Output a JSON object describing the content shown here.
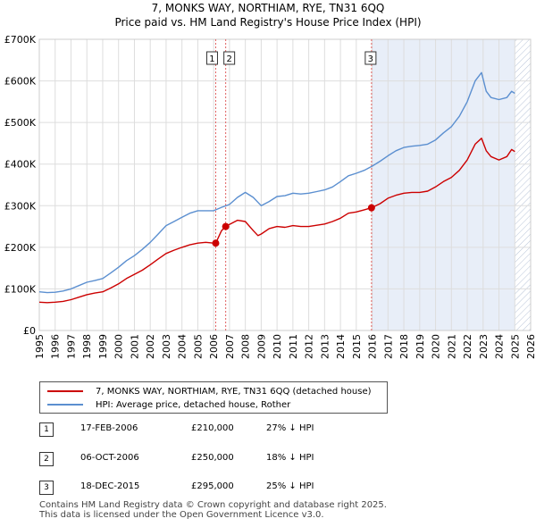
{
  "header": {
    "title": "7, MONKS WAY, NORTHIAM, RYE, TN31 6QQ",
    "subtitle": "Price paid vs. HM Land Registry's House Price Index (HPI)"
  },
  "colors": {
    "property": "#cc0000",
    "hpi": "#5b8fd0",
    "shade": "#e8eef8",
    "grid": "#dddddd",
    "vline": "#e06060"
  },
  "chart_data": {
    "type": "line",
    "title": "7, MONKS WAY, NORTHIAM, RYE, TN31 6QQ",
    "subtitle": "Price paid vs. HM Land Registry's House Price Index (HPI)",
    "xlim": [
      1995,
      2026
    ],
    "ylim": [
      0,
      700000
    ],
    "x_ticks": [
      1995,
      1996,
      1997,
      1998,
      1999,
      2000,
      2001,
      2002,
      2003,
      2004,
      2005,
      2006,
      2007,
      2008,
      2009,
      2010,
      2011,
      2012,
      2013,
      2014,
      2015,
      2016,
      2017,
      2018,
      2019,
      2020,
      2021,
      2022,
      2023,
      2024,
      2025,
      2026
    ],
    "y_ticks": [
      {
        "value": 0,
        "label": "£0"
      },
      {
        "value": 100000,
        "label": "£100K"
      },
      {
        "value": 200000,
        "label": "£200K"
      },
      {
        "value": 300000,
        "label": "£300K"
      },
      {
        "value": 400000,
        "label": "£400K"
      },
      {
        "value": 500000,
        "label": "£500K"
      },
      {
        "value": 600000,
        "label": "£600K"
      },
      {
        "value": 700000,
        "label": "£700K"
      }
    ],
    "shaded_ranges": [
      [
        2015.96,
        2025.0
      ],
      [
        2025.0,
        2026.0
      ]
    ],
    "series": [
      {
        "name": "7, MONKS WAY, NORTHIAM, RYE, TN31 6QQ (detached house)",
        "x": [
          1995.0,
          1995.5,
          1996.0,
          1996.5,
          1997.0,
          1997.5,
          1998.0,
          1998.5,
          1999.0,
          1999.5,
          2000.0,
          2000.5,
          2001.0,
          2001.5,
          2002.0,
          2002.5,
          2003.0,
          2003.5,
          2004.0,
          2004.5,
          2005.0,
          2005.5,
          2006.0,
          2006.13,
          2006.5,
          2006.76,
          2007.0,
          2007.5,
          2008.0,
          2008.5,
          2008.8,
          2009.0,
          2009.5,
          2010.0,
          2010.5,
          2011.0,
          2011.5,
          2012.0,
          2012.5,
          2013.0,
          2013.5,
          2014.0,
          2014.5,
          2015.0,
          2015.5,
          2015.96,
          2016.5,
          2017.0,
          2017.5,
          2018.0,
          2018.5,
          2019.0,
          2019.5,
          2020.0,
          2020.5,
          2021.0,
          2021.5,
          2022.0,
          2022.5,
          2022.9,
          2023.2,
          2023.5,
          2024.0,
          2024.5,
          2024.8,
          2025.0
        ],
        "values": [
          68000,
          67000,
          68000,
          70000,
          74000,
          80000,
          86000,
          90000,
          93000,
          102000,
          112000,
          125000,
          135000,
          145000,
          158000,
          172000,
          185000,
          193000,
          200000,
          206000,
          210000,
          212000,
          210000,
          210000,
          240000,
          250000,
          255000,
          265000,
          262000,
          240000,
          228000,
          232000,
          245000,
          250000,
          248000,
          252000,
          250000,
          250000,
          253000,
          256000,
          262000,
          270000,
          282000,
          285000,
          290000,
          295000,
          305000,
          318000,
          325000,
          330000,
          332000,
          332000,
          335000,
          345000,
          358000,
          368000,
          385000,
          410000,
          448000,
          462000,
          432000,
          418000,
          410000,
          418000,
          435000,
          430000
        ]
      },
      {
        "name": "HPI: Average price, detached house, Rother",
        "x": [
          1995.0,
          1995.5,
          1996.0,
          1996.5,
          1997.0,
          1997.5,
          1998.0,
          1998.5,
          1999.0,
          1999.5,
          2000.0,
          2000.5,
          2001.0,
          2001.5,
          2002.0,
          2002.5,
          2003.0,
          2003.5,
          2004.0,
          2004.5,
          2005.0,
          2005.5,
          2006.0,
          2006.5,
          2007.0,
          2007.5,
          2008.0,
          2008.5,
          2009.0,
          2009.5,
          2010.0,
          2010.5,
          2011.0,
          2011.5,
          2012.0,
          2012.5,
          2013.0,
          2013.5,
          2014.0,
          2014.5,
          2015.0,
          2015.5,
          2016.0,
          2016.5,
          2017.0,
          2017.5,
          2018.0,
          2018.5,
          2019.0,
          2019.5,
          2020.0,
          2020.5,
          2021.0,
          2021.5,
          2022.0,
          2022.5,
          2022.9,
          2023.2,
          2023.5,
          2024.0,
          2024.5,
          2024.8,
          2025.0
        ],
        "values": [
          93000,
          91000,
          92000,
          95000,
          100000,
          108000,
          116000,
          120000,
          125000,
          138000,
          152000,
          168000,
          180000,
          195000,
          212000,
          232000,
          252000,
          262000,
          272000,
          282000,
          288000,
          288000,
          288000,
          296000,
          303000,
          320000,
          332000,
          320000,
          300000,
          310000,
          322000,
          324000,
          330000,
          328000,
          330000,
          334000,
          338000,
          345000,
          358000,
          372000,
          378000,
          385000,
          395000,
          407000,
          420000,
          432000,
          440000,
          443000,
          445000,
          448000,
          458000,
          475000,
          490000,
          515000,
          550000,
          600000,
          620000,
          575000,
          560000,
          555000,
          560000,
          575000,
          570000
        ]
      }
    ],
    "transactions": [
      {
        "label": "1",
        "x": 2006.13,
        "value": 210000
      },
      {
        "label": "2",
        "x": 2006.76,
        "value": 250000
      },
      {
        "label": "3",
        "x": 2015.96,
        "value": 295000
      }
    ]
  },
  "legend": {
    "property_label": "7, MONKS WAY, NORTHIAM, RYE, TN31 6QQ (detached house)",
    "hpi_label": "HPI: Average price, detached house, Rother"
  },
  "transactions_table": [
    {
      "num": "1",
      "date": "17-FEB-2006",
      "price": "£210,000",
      "change": "27% ↓ HPI"
    },
    {
      "num": "2",
      "date": "06-OCT-2006",
      "price": "£250,000",
      "change": "18% ↓ HPI"
    },
    {
      "num": "3",
      "date": "18-DEC-2015",
      "price": "£295,000",
      "change": "25% ↓ HPI"
    }
  ],
  "footer": {
    "line1": "Contains HM Land Registry data © Crown copyright and database right 2025.",
    "line2": "This data is licensed under the Open Government Licence v3.0."
  }
}
